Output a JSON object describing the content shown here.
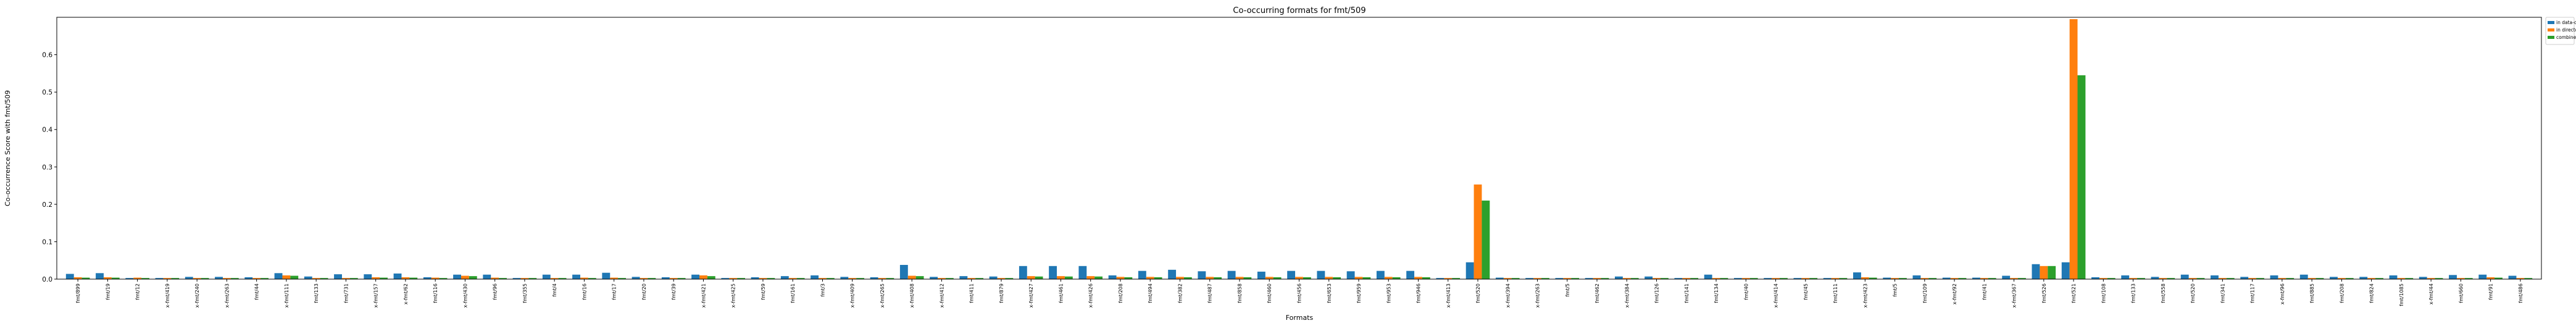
{
  "chart_data": {
    "type": "bar",
    "title": "Co-occurring formats for fmt/509",
    "xlabel": "Formats",
    "ylabel": "Co-occurrence Score with fmt/509",
    "ylim": [
      0,
      0.7
    ],
    "yticks": [
      "0.0",
      "0.1",
      "0.2",
      "0.3",
      "0.4",
      "0.5",
      "0.6"
    ],
    "grid": false,
    "legend_position": "outside-top-right",
    "categories": [
      "fmt/899",
      "fmt/19",
      "fmt/12",
      "x-fmt/419",
      "x-fmt/240",
      "x-fmt/263",
      "fmt/44",
      "x-fmt/111",
      "fmt/133",
      "fmt/731",
      "x-fmt/157",
      "x-fmt/62",
      "fmt/116",
      "x-fmt/430",
      "fmt/96",
      "fmt/355",
      "fmt/4",
      "fmt/16",
      "fmt/17",
      "fmt/20",
      "fmt/39",
      "x-fmt/421",
      "x-fmt/425",
      "fmt/59",
      "fmt/161",
      "fmt/3",
      "x-fmt/409",
      "x-fmt/265",
      "x-fmt/408",
      "x-fmt/412",
      "fmt/411",
      "fmt/879",
      "x-fmt/427",
      "fmt/461",
      "x-fmt/426",
      "fmt/208",
      "fmt/494",
      "fmt/382",
      "fmt/487",
      "fmt/858",
      "fmt/460",
      "fmt/456",
      "fmt/653",
      "fmt/959",
      "fmt/953",
      "fmt/946",
      "x-fmt/413",
      "fmt/520",
      "x-fmt/394",
      "x-fmt/263",
      "fmt/5",
      "fmt/462",
      "x-fmt/384",
      "fmt/126",
      "fmt/141",
      "fmt/134",
      "fmt/40",
      "x-fmt/414",
      "fmt/45",
      "fmt/111",
      "x-fmt/423",
      "fmt/5",
      "fmt/109",
      "x-fmt/92",
      "fmt/41",
      "x-fmt/367",
      "fmt/526",
      "fmt/521",
      "fmt/108",
      "fmt/133",
      "fmt/558",
      "fmt/520",
      "fmt/341",
      "fmt/117",
      "x-fmt/96",
      "fmt/885",
      "fmt/208",
      "fmt/824",
      "fmt/1085",
      "x-fmt/44",
      "fmt/660",
      "fmt/91",
      "fmt/486"
    ],
    "series": [
      {
        "name": "in data-objects",
        "color": "#1f77b4",
        "values": [
          0.014,
          0.016,
          0.003,
          0.003,
          0.006,
          0.006,
          0.005,
          0.016,
          0.007,
          0.013,
          0.013,
          0.015,
          0.005,
          0.012,
          0.012,
          0.003,
          0.012,
          0.012,
          0.017,
          0.006,
          0.005,
          0.012,
          0.003,
          0.005,
          0.008,
          0.01,
          0.006,
          0.005,
          0.038,
          0.006,
          0.008,
          0.007,
          0.035,
          0.035,
          0.035,
          0.01,
          0.022,
          0.025,
          0.021,
          0.022,
          0.02,
          0.022,
          0.022,
          0.021,
          0.022,
          0.022,
          0.003,
          0.045,
          0.004,
          0.003,
          0.003,
          0.003,
          0.007,
          0.007,
          0.003,
          0.012,
          0.003,
          0.003,
          0.003,
          0.003,
          0.018,
          0.004,
          0.01,
          0.004,
          0.004,
          0.009,
          0.04,
          0.045,
          0.005,
          0.01,
          0.006,
          0.012,
          0.01,
          0.006,
          0.01,
          0.012,
          0.006,
          0.006,
          0.01,
          0.006,
          0.011,
          0.012,
          0.009
        ]
      },
      {
        "name": "in directories",
        "color": "#ff7f0e",
        "values": [
          0.005,
          0.005,
          0.004,
          0.003,
          0.003,
          0.003,
          0.003,
          0.01,
          0.003,
          0.003,
          0.005,
          0.005,
          0.004,
          0.009,
          0.004,
          0.003,
          0.003,
          0.004,
          0.004,
          0.003,
          0.003,
          0.01,
          0.003,
          0.003,
          0.003,
          0.003,
          0.003,
          0.003,
          0.009,
          0.003,
          0.003,
          0.003,
          0.008,
          0.008,
          0.008,
          0.006,
          0.006,
          0.006,
          0.006,
          0.006,
          0.006,
          0.006,
          0.006,
          0.006,
          0.006,
          0.006,
          0.003,
          0.253,
          0.003,
          0.003,
          0.003,
          0.003,
          0.003,
          0.003,
          0.003,
          0.003,
          0.003,
          0.003,
          0.003,
          0.003,
          0.005,
          0.003,
          0.003,
          0.003,
          0.003,
          0.003,
          0.035,
          0.695,
          0.003,
          0.003,
          0.003,
          0.003,
          0.003,
          0.003,
          0.003,
          0.003,
          0.003,
          0.003,
          0.003,
          0.003,
          0.003,
          0.005,
          0.003
        ]
      },
      {
        "name": "combined",
        "color": "#2ca02c",
        "values": [
          0.004,
          0.004,
          0.003,
          0.003,
          0.003,
          0.003,
          0.003,
          0.009,
          0.003,
          0.003,
          0.004,
          0.004,
          0.003,
          0.008,
          0.003,
          0.003,
          0.003,
          0.003,
          0.003,
          0.003,
          0.003,
          0.008,
          0.003,
          0.003,
          0.003,
          0.003,
          0.003,
          0.003,
          0.008,
          0.003,
          0.003,
          0.003,
          0.007,
          0.007,
          0.007,
          0.005,
          0.005,
          0.005,
          0.005,
          0.005,
          0.005,
          0.005,
          0.005,
          0.005,
          0.005,
          0.005,
          0.003,
          0.21,
          0.003,
          0.003,
          0.003,
          0.003,
          0.003,
          0.003,
          0.003,
          0.003,
          0.003,
          0.003,
          0.003,
          0.003,
          0.004,
          0.003,
          0.003,
          0.003,
          0.003,
          0.003,
          0.035,
          0.545,
          0.003,
          0.003,
          0.003,
          0.003,
          0.003,
          0.003,
          0.003,
          0.003,
          0.003,
          0.003,
          0.003,
          0.003,
          0.003,
          0.004,
          0.003
        ]
      }
    ]
  }
}
